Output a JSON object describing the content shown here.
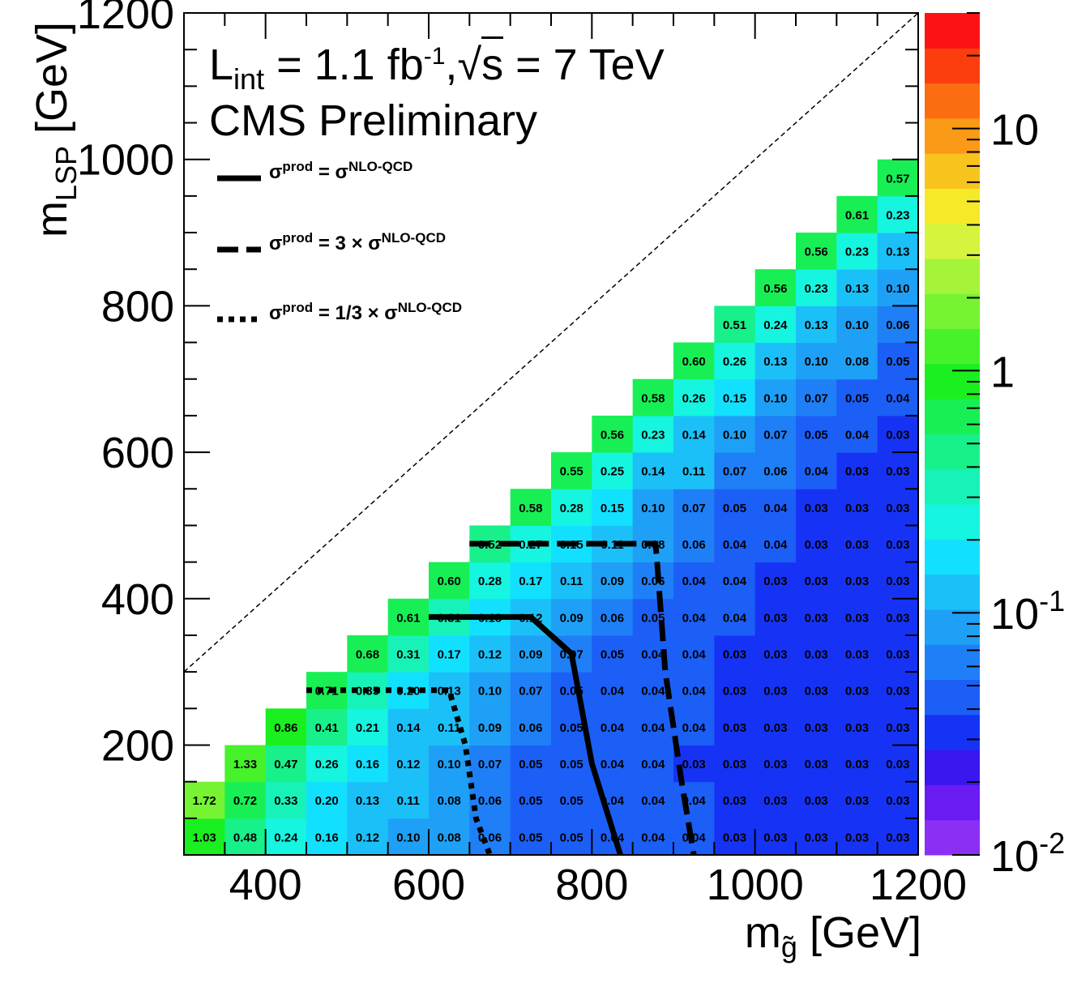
{
  "chart_data": {
    "type": "heatmap",
    "xlabel_parts": {
      "main": "m",
      "sub": "g̃",
      "unit": " [GeV]"
    },
    "ylabel_parts": {
      "main": "m",
      "sub": "LSP",
      "unit": " [GeV]"
    },
    "xlim": [
      300,
      1200
    ],
    "ylim": [
      50,
      1200
    ],
    "x_ticks": [
      "400",
      "600",
      "800",
      "1000",
      "1200"
    ],
    "y_ticks": [
      "200",
      "400",
      "600",
      "800",
      "1000",
      "1200"
    ],
    "z_scale": "log",
    "zlim": [
      0.01,
      30
    ],
    "z_ticks": [
      {
        "base": "10",
        "exp": "-2"
      },
      {
        "base": "10",
        "exp": "-1"
      },
      {
        "base": "1",
        "exp": ""
      },
      {
        "base": "10",
        "exp": ""
      }
    ],
    "annotations": {
      "lumi": {
        "L": "L",
        "L_sub": "int",
        "eq": " = 1.1 fb",
        "fb_sup": "-1",
        "comma": ",",
        "sqrt_symbol": "√",
        "s": "s",
        "energy": " = 7 TeV"
      },
      "preliminary": "CMS Preliminary"
    },
    "legend": [
      {
        "style": "solid",
        "sigma": "σ",
        "sup1": "prod",
        "mid": " = σ",
        "sup2": "NLO-QCD"
      },
      {
        "style": "dashed",
        "sigma": "σ",
        "sup1": "prod",
        "mid": " = 3 × σ",
        "sup2": "NLO-QCD"
      },
      {
        "style": "dotted",
        "sigma": "σ",
        "sup1": "prod",
        "mid": " = 1/3 × σ",
        "sup2": "NLO-QCD"
      }
    ],
    "x_bins": [
      300,
      350,
      400,
      450,
      500,
      550,
      600,
      650,
      700,
      750,
      800,
      850,
      900,
      950,
      1000,
      1050,
      1100,
      1150,
      1200
    ],
    "y_rows": [
      {
        "y_lo": 50,
        "y_hi": 100,
        "x_start": 300,
        "values": [
          "1.03",
          "0.48",
          "0.24",
          "0.16",
          "0.12",
          "0.10",
          "0.08",
          "0.06",
          "0.05",
          "0.05",
          "0.04",
          "0.04",
          "0.04",
          "0.03",
          "0.03",
          "0.03",
          "0.03",
          "0.03"
        ]
      },
      {
        "y_lo": 100,
        "y_hi": 150,
        "x_start": 300,
        "values": [
          "1.72",
          "0.72",
          "0.33",
          "0.20",
          "0.13",
          "0.11",
          "0.08",
          "0.06",
          "0.05",
          "0.05",
          "0.04",
          "0.04",
          "0.04",
          "0.03",
          "0.03",
          "0.03",
          "0.03",
          "0.03"
        ]
      },
      {
        "y_lo": 150,
        "y_hi": 200,
        "x_start": 350,
        "values": [
          "1.33",
          "0.47",
          "0.26",
          "0.16",
          "0.12",
          "0.10",
          "0.07",
          "0.05",
          "0.05",
          "0.04",
          "0.04",
          "0.03",
          "0.03",
          "0.03",
          "0.03",
          "0.03",
          "0.03"
        ]
      },
      {
        "y_lo": 200,
        "y_hi": 250,
        "x_start": 400,
        "values": [
          "0.86",
          "0.41",
          "0.21",
          "0.14",
          "0.11",
          "0.09",
          "0.06",
          "0.05",
          "0.04",
          "0.04",
          "0.04",
          "0.03",
          "0.03",
          "0.03",
          "0.03",
          "0.03"
        ]
      },
      {
        "y_lo": 250,
        "y_hi": 300,
        "x_start": 450,
        "values": [
          "0.71",
          "0.35",
          "0.20",
          "0.13",
          "0.10",
          "0.07",
          "0.05",
          "0.04",
          "0.04",
          "0.04",
          "0.03",
          "0.03",
          "0.03",
          "0.03",
          "0.03"
        ]
      },
      {
        "y_lo": 300,
        "y_hi": 350,
        "x_start": 500,
        "values": [
          "0.68",
          "0.31",
          "0.17",
          "0.12",
          "0.09",
          "0.07",
          "0.05",
          "0.04",
          "0.04",
          "0.03",
          "0.03",
          "0.03",
          "0.03",
          "0.03"
        ]
      },
      {
        "y_lo": 350,
        "y_hi": 400,
        "x_start": 550,
        "values": [
          "0.61",
          "0.31",
          "0.18",
          "0.12",
          "0.09",
          "0.06",
          "0.05",
          "0.04",
          "0.04",
          "0.03",
          "0.03",
          "0.03",
          "0.03"
        ]
      },
      {
        "y_lo": 400,
        "y_hi": 450,
        "x_start": 600,
        "values": [
          "0.60",
          "0.28",
          "0.17",
          "0.11",
          "0.09",
          "0.06",
          "0.04",
          "0.04",
          "0.03",
          "0.03",
          "0.03",
          "0.03"
        ]
      },
      {
        "y_lo": 450,
        "y_hi": 500,
        "x_start": 650,
        "values": [
          "0.52",
          "0.27",
          "0.15",
          "0.11",
          "0.08",
          "0.06",
          "0.04",
          "0.04",
          "0.03",
          "0.03",
          "0.03"
        ]
      },
      {
        "y_lo": 500,
        "y_hi": 550,
        "x_start": 700,
        "values": [
          "0.58",
          "0.28",
          "0.15",
          "0.10",
          "0.07",
          "0.05",
          "0.04",
          "0.03",
          "0.03",
          "0.03"
        ]
      },
      {
        "y_lo": 550,
        "y_hi": 600,
        "x_start": 750,
        "values": [
          "0.55",
          "0.25",
          "0.14",
          "0.11",
          "0.07",
          "0.06",
          "0.04",
          "0.03",
          "0.03"
        ]
      },
      {
        "y_lo": 600,
        "y_hi": 650,
        "x_start": 800,
        "values": [
          "0.56",
          "0.23",
          "0.14",
          "0.10",
          "0.07",
          "0.05",
          "0.04",
          "0.03"
        ]
      },
      {
        "y_lo": 650,
        "y_hi": 700,
        "x_start": 850,
        "values": [
          "0.58",
          "0.26",
          "0.15",
          "0.10",
          "0.07",
          "0.05",
          "0.04"
        ]
      },
      {
        "y_lo": 700,
        "y_hi": 750,
        "x_start": 900,
        "values": [
          "0.60",
          "0.26",
          "0.13",
          "0.10",
          "0.08",
          "0.05"
        ]
      },
      {
        "y_lo": 750,
        "y_hi": 800,
        "x_start": 950,
        "values": [
          "0.51",
          "0.24",
          "0.13",
          "0.10",
          "0.06"
        ]
      },
      {
        "y_lo": 800,
        "y_hi": 850,
        "x_start": 1000,
        "values": [
          "0.56",
          "0.23",
          "0.13",
          "0.10"
        ]
      },
      {
        "y_lo": 850,
        "y_hi": 900,
        "x_start": 1050,
        "values": [
          "0.56",
          "0.23",
          "0.13"
        ]
      },
      {
        "y_lo": 900,
        "y_hi": 950,
        "x_start": 1100,
        "values": [
          "0.61",
          "0.23"
        ]
      },
      {
        "y_lo": 950,
        "y_hi": 1000,
        "x_start": 1150,
        "values": [
          "0.57"
        ]
      }
    ],
    "contours": {
      "solid": [
        [
          600,
          375
        ],
        [
          725,
          375
        ],
        [
          775,
          325
        ],
        [
          800,
          175
        ],
        [
          835,
          50
        ]
      ],
      "dashed": [
        [
          650,
          475
        ],
        [
          878,
          475
        ],
        [
          880,
          450
        ],
        [
          890,
          300
        ],
        [
          910,
          150
        ],
        [
          925,
          50
        ]
      ],
      "dotted": [
        [
          450,
          275
        ],
        [
          625,
          275
        ],
        [
          645,
          200
        ],
        [
          658,
          100
        ],
        [
          675,
          50
        ]
      ]
    },
    "diagonal": [
      [
        300,
        300
      ],
      [
        1200,
        1200
      ]
    ],
    "grid": false,
    "legend_placement": "top-left"
  }
}
